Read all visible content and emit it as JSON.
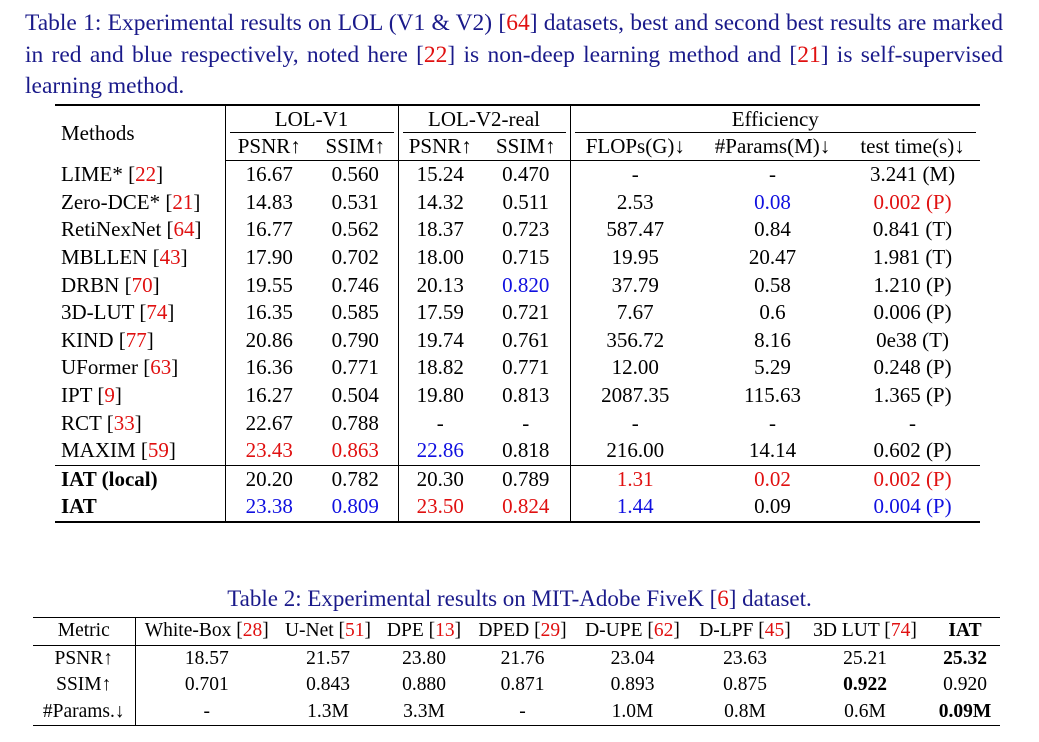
{
  "table1": {
    "caption": "Table 1: Experimental results on LOL (V1 & V2) [64] datasets, best and second best results are marked in red and blue respectively, noted here [22] is non-deep learning method and [21] is self-supervised learning method.",
    "row_header": "Methods",
    "groups": [
      {
        "label": "LOL-V1",
        "columns": [
          "PSNR↑",
          "SSIM↑"
        ]
      },
      {
        "label": "LOL-V2-real",
        "columns": [
          "PSNR↑",
          "SSIM↑"
        ]
      },
      {
        "label": "Efficiency",
        "columns": [
          "FLOPs(G)↓",
          "#Params(M)↓",
          "test time(s)↓"
        ]
      }
    ],
    "rows": [
      {
        "method": "LIME* [22]",
        "values": [
          "16.67",
          "0.560",
          "15.24",
          "0.470",
          "-",
          "-",
          "3.241 (M)"
        ]
      },
      {
        "method": "Zero-DCE* [21]",
        "values": [
          "14.83",
          "0.531",
          "14.32",
          "0.511",
          "2.53",
          {
            "text": "0.08",
            "color": "#1010e0"
          },
          {
            "text": "0.002 (P)",
            "color": "#e01010"
          }
        ]
      },
      {
        "method": "RetiNexNet [64]",
        "values": [
          "16.77",
          "0.562",
          "18.37",
          "0.723",
          "587.47",
          "0.84",
          "0.841 (T)"
        ]
      },
      {
        "method": "MBLLEN [43]",
        "values": [
          "17.90",
          "0.702",
          "18.00",
          "0.715",
          "19.95",
          "20.47",
          "1.981 (T)"
        ]
      },
      {
        "method": "DRBN [70]",
        "values": [
          "19.55",
          "0.746",
          "20.13",
          {
            "text": "0.820",
            "color": "#1010e0"
          },
          "37.79",
          "0.58",
          "1.210 (P)"
        ]
      },
      {
        "method": "3D-LUT [74]",
        "values": [
          "16.35",
          "0.585",
          "17.59",
          "0.721",
          "7.67",
          "0.6",
          "0.006 (P)"
        ]
      },
      {
        "method": "KIND [77]",
        "values": [
          "20.86",
          "0.790",
          "19.74",
          "0.761",
          "356.72",
          "8.16",
          "0e38 (T)"
        ]
      },
      {
        "method": "UFormer [63]",
        "values": [
          "16.36",
          "0.771",
          "18.82",
          "0.771",
          "12.00",
          "5.29",
          "0.248 (P)"
        ]
      },
      {
        "method": "IPT [9]",
        "values": [
          "16.27",
          "0.504",
          "19.80",
          "0.813",
          "2087.35",
          "115.63",
          "1.365 (P)"
        ]
      },
      {
        "method": "RCT [33]",
        "values": [
          "22.67",
          "0.788",
          "-",
          "-",
          "-",
          "-",
          "-"
        ]
      },
      {
        "method": "MAXIM [59]",
        "values": [
          {
            "text": "23.43",
            "color": "#e01010"
          },
          {
            "text": "0.863",
            "color": "#e01010"
          },
          {
            "text": "22.86",
            "color": "#1010e0"
          },
          "0.818",
          "216.00",
          "14.14",
          "0.602 (P)"
        ]
      },
      {
        "method": {
          "text": "IAT (local)",
          "bold": true
        },
        "values": [
          "20.20",
          "0.782",
          "20.30",
          "0.789",
          {
            "text": "1.31",
            "color": "#e01010"
          },
          {
            "text": "0.02",
            "color": "#e01010"
          },
          {
            "text": "0.002 (P)",
            "color": "#e01010"
          }
        ]
      },
      {
        "method": {
          "text": "IAT",
          "bold": true
        },
        "values": [
          {
            "text": "23.38",
            "color": "#1010e0"
          },
          {
            "text": "0.809",
            "color": "#1010e0"
          },
          {
            "text": "23.50",
            "color": "#e01010"
          },
          {
            "text": "0.824",
            "color": "#e01010"
          },
          {
            "text": "1.44",
            "color": "#1010e0"
          },
          "0.09",
          {
            "text": "0.004 (P)",
            "color": "#1010e0"
          }
        ]
      }
    ]
  },
  "table2": {
    "caption": "Table 2: Experimental results on MIT-Adobe FiveK [6] dataset.",
    "header": [
      "Metric",
      "White-Box [28]",
      "U-Net [51]",
      "DPE [13]",
      "DPED [29]",
      "D-UPE [62]",
      "D-LPF [45]",
      "3D LUT [74]",
      {
        "text": "IAT",
        "bold": true
      }
    ],
    "rows": [
      [
        "PSNR↑",
        "18.57",
        "21.57",
        "23.80",
        "21.76",
        "23.04",
        "23.63",
        "25.21",
        {
          "text": "25.32",
          "bold": true
        }
      ],
      [
        "SSIM↑",
        "0.701",
        "0.843",
        "0.880",
        "0.871",
        "0.893",
        "0.875",
        {
          "text": "0.922",
          "bold": true
        },
        "0.920"
      ],
      [
        "#Params.↓",
        "-",
        "1.3M",
        "3.3M",
        "-",
        "1.0M",
        "0.8M",
        "0.6M",
        {
          "text": "0.09M",
          "bold": true
        }
      ]
    ]
  }
}
